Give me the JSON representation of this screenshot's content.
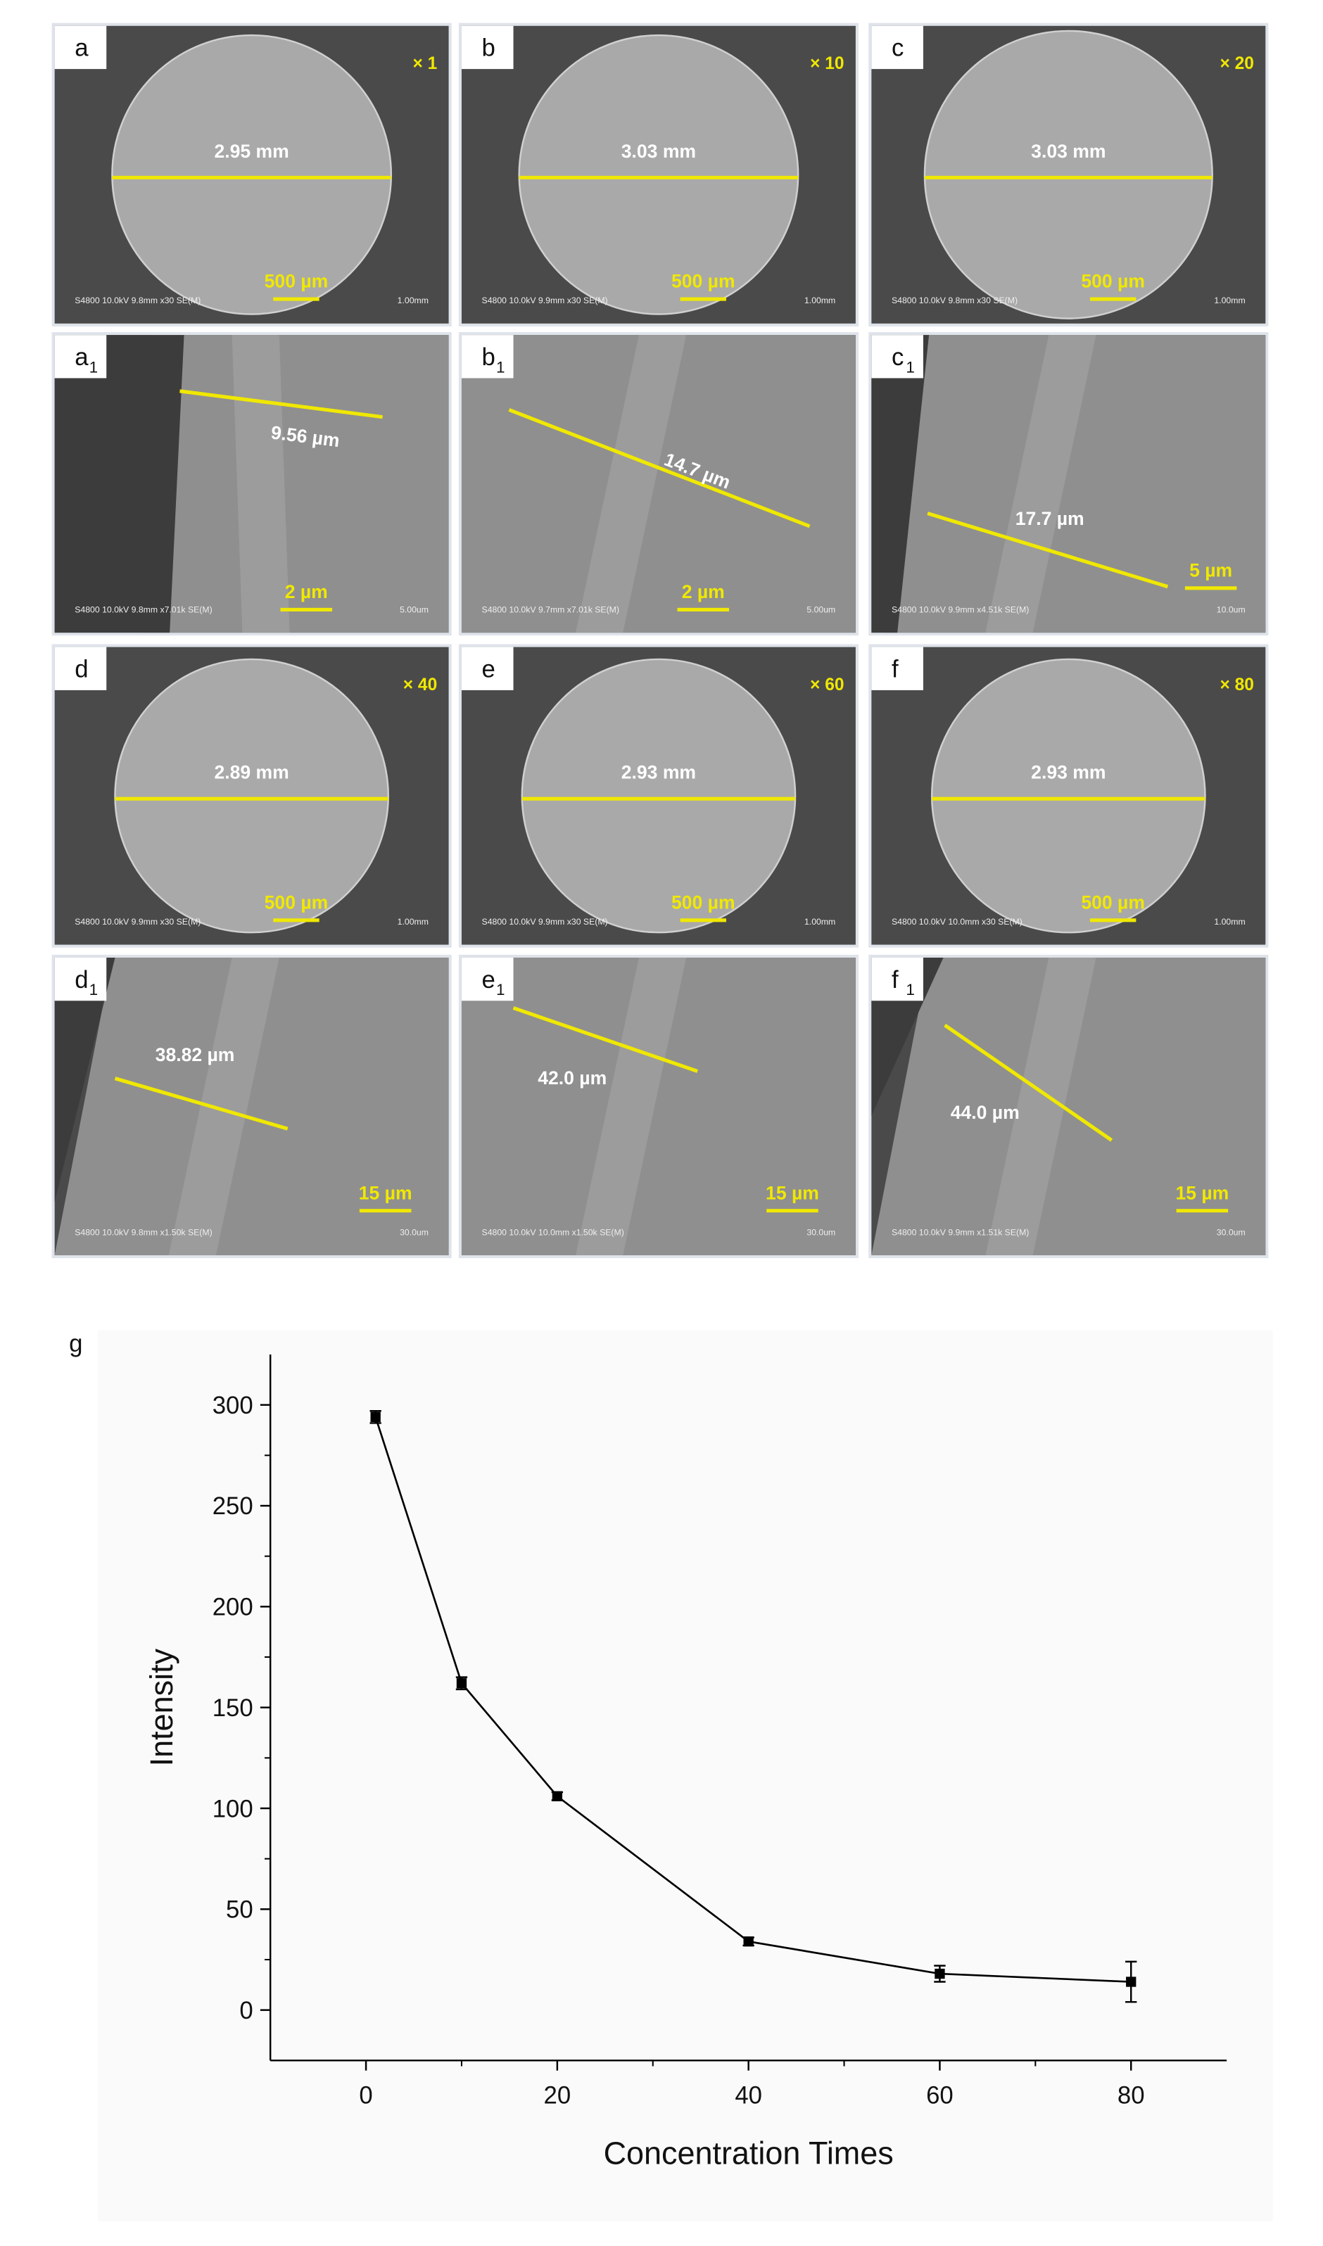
{
  "panels": [
    {
      "label": "a",
      "factor": "× 1",
      "measure": "2.95 mm",
      "scale": "500 µm",
      "info": "S4800 10.0kV 9.8mm x30 SE(M)",
      "ruler": "1.00mm"
    },
    {
      "label": "b",
      "factor": "× 10",
      "measure": "3.03 mm",
      "scale": "500 µm",
      "info": "S4800 10.0kV 9.9mm x30 SE(M)",
      "ruler": "1.00mm"
    },
    {
      "label": "c",
      "factor": "× 20",
      "measure": "3.03 mm",
      "scale": "500 µm",
      "info": "S4800 10.0kV 9.8mm x30 SE(M)",
      "ruler": "1.00mm"
    },
    {
      "label": "a",
      "subscript": "1",
      "measure": "9.56 µm",
      "scale": "2 µm",
      "info": "S4800 10.0kV 9.8mm x7.01k SE(M)",
      "ruler": "5.00um"
    },
    {
      "label": "b",
      "subscript": "1",
      "measure": "14.7 µm",
      "scale": "2 µm",
      "info": "S4800 10.0kV 9.7mm x7.01k SE(M)",
      "ruler": "5.00um"
    },
    {
      "label": "c",
      "subscript": "1",
      "measure": "17.7 µm",
      "scale": "5 µm",
      "info": "S4800 10.0kV 9.9mm x4.51k SE(M)",
      "ruler": "10.0um"
    },
    {
      "label": "d",
      "factor": "× 40",
      "measure": "2.89 mm",
      "scale": "500 µm",
      "info": "S4800 10.0kV 9.9mm x30 SE(M)",
      "ruler": "1.00mm"
    },
    {
      "label": "e",
      "factor": "× 60",
      "measure": "2.93 mm",
      "scale": "500 µm",
      "info": "S4800 10.0kV 9.9mm x30 SE(M)",
      "ruler": "1.00mm"
    },
    {
      "label": "f",
      "factor": "× 80",
      "measure": "2.93 mm",
      "scale": "500 µm",
      "info": "S4800 10.0kV 10.0mm x30 SE(M)",
      "ruler": "1.00mm"
    },
    {
      "label": "d",
      "subscript": "1",
      "measure": "38.82 µm",
      "scale": "15 µm",
      "info": "S4800 10.0kV 9.8mm x1.50k SE(M)",
      "ruler": "30.0um"
    },
    {
      "label": "e",
      "subscript": "1",
      "measure": "42.0 µm",
      "scale": "15 µm",
      "info": "S4800 10.0kV 10.0mm x1.50k SE(M)",
      "ruler": "30.0um"
    },
    {
      "label": "f",
      "subscript": "1",
      "measure": "44.0 µm",
      "scale": "15 µm",
      "info": "S4800 10.0kV 9.9mm x1.51k SE(M)",
      "ruler": "30.0um"
    }
  ],
  "chart_data": {
    "type": "line",
    "panel_label": "g",
    "xlabel": "Concentration Times",
    "ylabel": "Intensity",
    "x": [
      1,
      10,
      20,
      40,
      60,
      80
    ],
    "values": [
      294,
      162,
      106,
      34,
      18,
      14
    ],
    "errors": [
      3,
      3,
      2,
      2,
      4,
      10
    ],
    "color": "#000000",
    "xlim": [
      -10,
      90
    ],
    "xticks": [
      0,
      20,
      40,
      60,
      80
    ],
    "ylim": [
      -25,
      325
    ],
    "yticks": [
      0,
      50,
      100,
      150,
      200,
      250,
      300
    ]
  }
}
